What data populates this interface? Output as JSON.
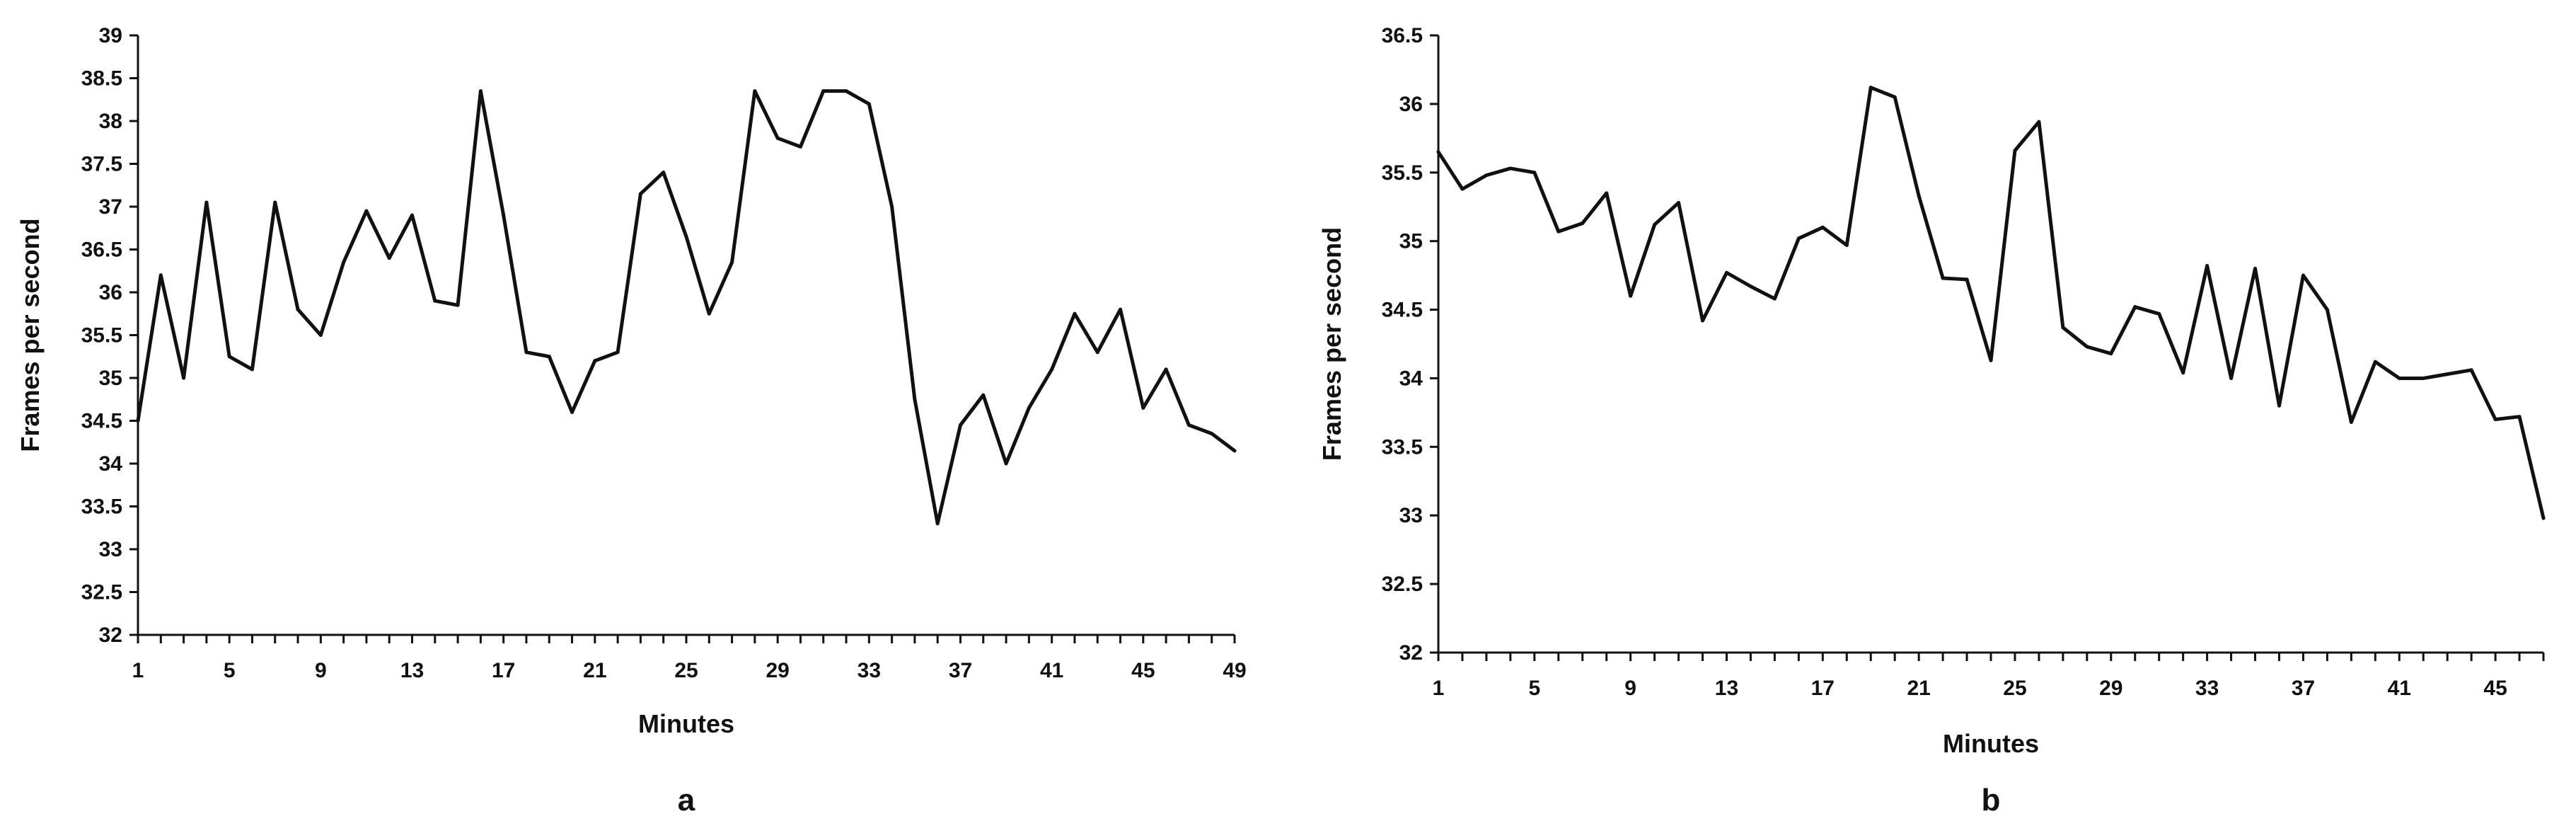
{
  "chart_data": [
    {
      "type": "line",
      "panel_label": "a",
      "xlabel": "Minutes",
      "ylabel": "Frames per second",
      "ylim": [
        32,
        39
      ],
      "y_ticks": [
        "32",
        "32.5",
        "33",
        "33.5",
        "34",
        "34.5",
        "35",
        "35.5",
        "36",
        "36.5",
        "37",
        "37.5",
        "38",
        "38.5",
        "39"
      ],
      "x_tick_labels": [
        "1",
        "5",
        "9",
        "13",
        "17",
        "21",
        "25",
        "29",
        "33",
        "37",
        "41",
        "45",
        "49"
      ],
      "x": [
        1,
        2,
        3,
        4,
        5,
        6,
        7,
        8,
        9,
        10,
        11,
        12,
        13,
        14,
        15,
        16,
        17,
        18,
        19,
        20,
        21,
        22,
        23,
        24,
        25,
        26,
        27,
        28,
        29,
        30,
        31,
        32,
        33,
        34,
        35,
        36,
        37,
        38,
        39,
        40,
        41,
        42,
        43,
        44,
        45,
        46,
        47,
        48,
        49
      ],
      "values": [
        34.5,
        36.2,
        35.0,
        37.05,
        35.25,
        35.1,
        37.05,
        35.8,
        35.5,
        36.35,
        36.95,
        36.4,
        36.9,
        35.9,
        35.85,
        38.35,
        36.9,
        35.3,
        35.25,
        34.6,
        35.2,
        35.3,
        37.15,
        37.4,
        36.65,
        35.75,
        36.35,
        38.35,
        37.8,
        37.7,
        38.35,
        38.35,
        38.2,
        37.0,
        34.75,
        33.3,
        34.45,
        34.8,
        34.0,
        34.65,
        35.1,
        35.75,
        35.3,
        35.8,
        34.65,
        35.1,
        34.45,
        34.35,
        34.15
      ]
    },
    {
      "type": "line",
      "panel_label": "b",
      "xlabel": "Minutes",
      "ylabel": "Frames per second",
      "ylim": [
        32,
        36.5
      ],
      "y_ticks": [
        "32",
        "32.5",
        "33",
        "33.5",
        "34",
        "34.5",
        "35",
        "35.5",
        "36",
        "36.5"
      ],
      "x_tick_labels": [
        "1",
        "5",
        "9",
        "13",
        "17",
        "21",
        "25",
        "29",
        "33",
        "37",
        "41",
        "45"
      ],
      "x": [
        1,
        2,
        3,
        4,
        5,
        6,
        7,
        8,
        9,
        10,
        11,
        12,
        13,
        14,
        15,
        16,
        17,
        18,
        19,
        20,
        21,
        22,
        23,
        24,
        25,
        26,
        27,
        28,
        29,
        30,
        31,
        32,
        33,
        34,
        35,
        36,
        37,
        38,
        39,
        40,
        41,
        42,
        43,
        44,
        45,
        46,
        47
      ],
      "values": [
        35.65,
        35.38,
        35.48,
        35.53,
        35.5,
        35.07,
        35.13,
        35.35,
        34.6,
        35.12,
        35.28,
        34.42,
        34.77,
        34.67,
        34.58,
        35.02,
        35.1,
        34.97,
        36.12,
        36.05,
        35.33,
        34.73,
        34.72,
        34.13,
        35.66,
        35.87,
        34.37,
        34.23,
        34.18,
        34.52,
        34.47,
        34.04,
        34.82,
        34.0,
        34.8,
        33.8,
        34.75,
        34.5,
        33.68,
        34.12,
        34.0,
        34.0,
        34.03,
        34.06,
        33.7,
        33.72,
        32.98
      ]
    }
  ]
}
